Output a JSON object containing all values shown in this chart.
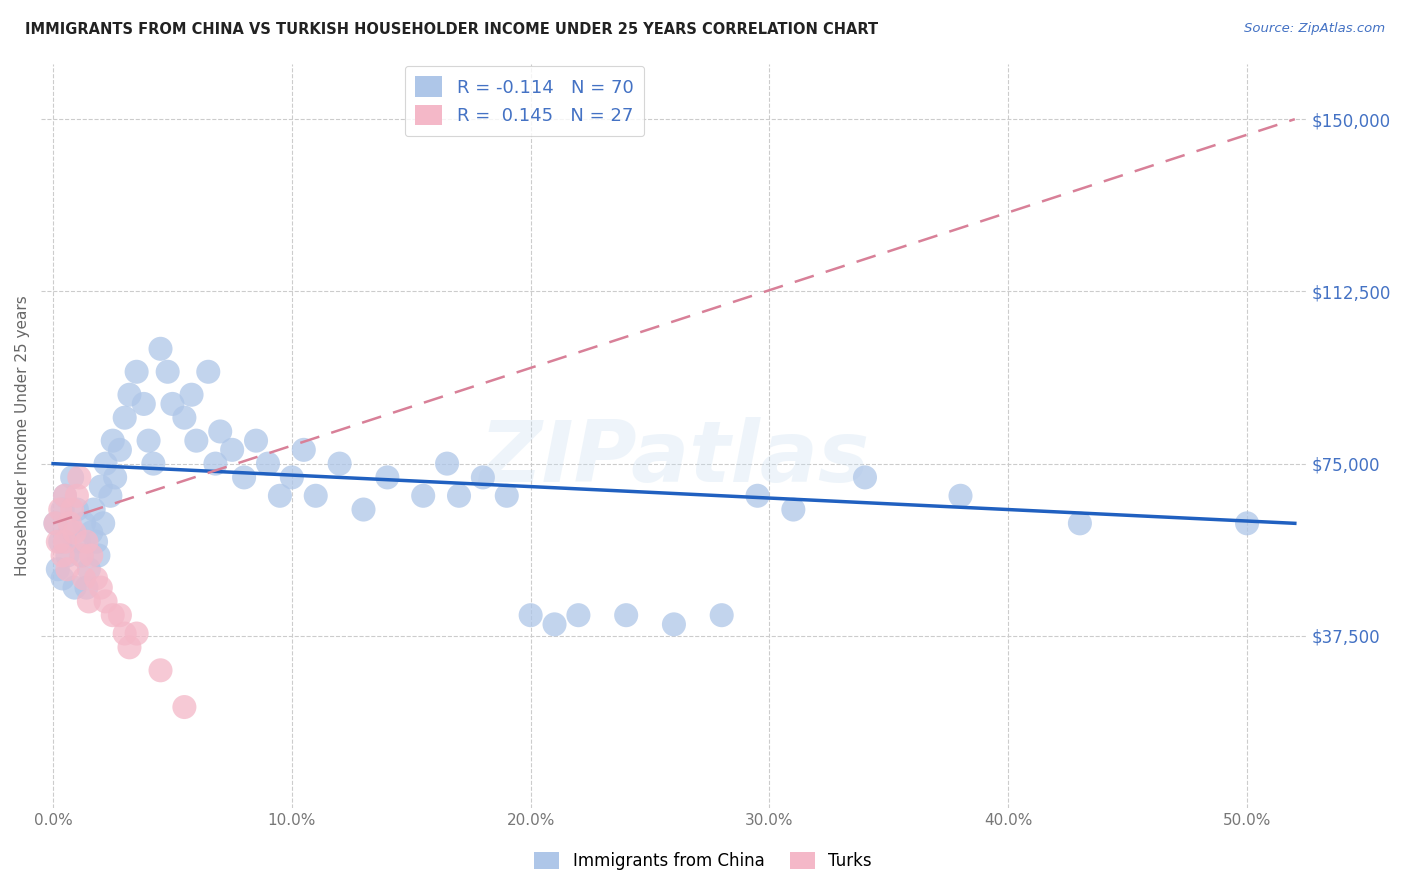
{
  "title": "IMMIGRANTS FROM CHINA VS TURKISH HOUSEHOLDER INCOME UNDER 25 YEARS CORRELATION CHART",
  "source": "Source: ZipAtlas.com",
  "ylabel": "Householder Income Under 25 years",
  "xlabel_ticks": [
    "0.0%",
    "10.0%",
    "20.0%",
    "30.0%",
    "40.0%",
    "50.0%"
  ],
  "xlabel_vals": [
    0.0,
    0.1,
    0.2,
    0.3,
    0.4,
    0.5
  ],
  "ylabel_ticks": [
    "$37,500",
    "$75,000",
    "$112,500",
    "$150,000"
  ],
  "ylabel_vals": [
    37500,
    75000,
    112500,
    150000
  ],
  "ylim": [
    0,
    162000
  ],
  "xlim": [
    -0.005,
    0.525
  ],
  "legend1_label": "R = -0.114   N = 70",
  "legend2_label": "R =  0.145   N = 27",
  "legend1_color": "#aec6e8",
  "legend2_color": "#f4b8c8",
  "trendline1_color": "#2060c0",
  "trendline2_color": "#d88098",
  "watermark": "ZIPatlas",
  "china_x": [
    0.001,
    0.002,
    0.003,
    0.004,
    0.004,
    0.005,
    0.006,
    0.007,
    0.008,
    0.009,
    0.01,
    0.011,
    0.012,
    0.013,
    0.014,
    0.015,
    0.016,
    0.017,
    0.018,
    0.019,
    0.02,
    0.021,
    0.022,
    0.024,
    0.025,
    0.026,
    0.028,
    0.03,
    0.032,
    0.035,
    0.038,
    0.04,
    0.042,
    0.045,
    0.048,
    0.05,
    0.055,
    0.058,
    0.06,
    0.065,
    0.068,
    0.07,
    0.075,
    0.08,
    0.085,
    0.09,
    0.095,
    0.1,
    0.105,
    0.11,
    0.12,
    0.13,
    0.14,
    0.155,
    0.165,
    0.17,
    0.18,
    0.19,
    0.2,
    0.21,
    0.22,
    0.24,
    0.26,
    0.28,
    0.295,
    0.31,
    0.34,
    0.38,
    0.43,
    0.5
  ],
  "china_y": [
    62000,
    52000,
    58000,
    65000,
    50000,
    68000,
    55000,
    60000,
    72000,
    48000,
    65000,
    58000,
    55000,
    62000,
    48000,
    52000,
    60000,
    65000,
    58000,
    55000,
    70000,
    62000,
    75000,
    68000,
    80000,
    72000,
    78000,
    85000,
    90000,
    95000,
    88000,
    80000,
    75000,
    100000,
    95000,
    88000,
    85000,
    90000,
    80000,
    95000,
    75000,
    82000,
    78000,
    72000,
    80000,
    75000,
    68000,
    72000,
    78000,
    68000,
    75000,
    65000,
    72000,
    68000,
    75000,
    68000,
    72000,
    68000,
    42000,
    40000,
    42000,
    42000,
    40000,
    42000,
    68000,
    65000,
    72000,
    68000,
    62000,
    62000
  ],
  "turks_x": [
    0.001,
    0.002,
    0.003,
    0.004,
    0.005,
    0.005,
    0.006,
    0.007,
    0.008,
    0.009,
    0.01,
    0.011,
    0.012,
    0.013,
    0.014,
    0.015,
    0.016,
    0.018,
    0.02,
    0.022,
    0.025,
    0.028,
    0.03,
    0.032,
    0.035,
    0.045,
    0.055
  ],
  "turks_y": [
    62000,
    58000,
    65000,
    55000,
    68000,
    58000,
    52000,
    62000,
    65000,
    60000,
    68000,
    72000,
    55000,
    50000,
    58000,
    45000,
    55000,
    50000,
    48000,
    45000,
    42000,
    42000,
    38000,
    35000,
    38000,
    30000,
    22000
  ],
  "trendline1_x": [
    0.0,
    0.52
  ],
  "trendline1_y": [
    75000,
    62000
  ],
  "trendline2_x": [
    0.0,
    0.52
  ],
  "trendline2_y": [
    62000,
    150000
  ]
}
